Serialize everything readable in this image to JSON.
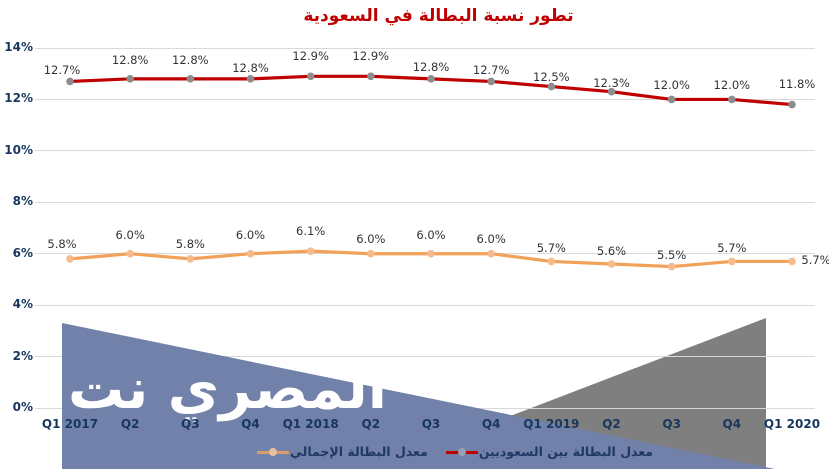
{
  "title": "تطور نسبة البطالة في السعودية",
  "watermark_text": "المصري نت",
  "chart_data": {
    "type": "line",
    "title": "تطور نسبة البطالة في السعودية",
    "categories": [
      "Q1 2017",
      "Q2",
      "Q3",
      "Q4",
      "Q1 2018",
      "Q2",
      "Q3",
      "Q4",
      "Q1 2019",
      "Q2",
      "Q3",
      "Q4",
      "Q1 2020"
    ],
    "series": [
      {
        "name": "معدل البطالة بين السعوديين",
        "values": [
          12.7,
          12.8,
          12.8,
          12.8,
          12.9,
          12.9,
          12.8,
          12.7,
          12.5,
          12.3,
          12.0,
          12.0,
          11.8
        ],
        "labels": [
          "12.7%",
          "12.8%",
          "12.8%",
          "12.8%",
          "12.9%",
          "12.9%",
          "12.8%",
          "12.7%",
          "12.5%",
          "12.3%",
          "12.0%",
          "12.0%",
          "11.8%"
        ],
        "line_color": "#C00000",
        "marker_color": "#8D8D8D"
      },
      {
        "name": "معدل البطالة الإجمالي",
        "values": [
          5.8,
          6.0,
          5.8,
          6.0,
          6.1,
          6.0,
          6.0,
          6.0,
          5.7,
          5.6,
          5.5,
          5.7,
          5.7
        ],
        "labels": [
          "5.8%",
          "6.0%",
          "5.8%",
          "6.0%",
          "6.1%",
          "6.0%",
          "6.0%",
          "6.0%",
          "5.7%",
          "5.6%",
          "5.5%",
          "5.7%",
          "5.7%"
        ],
        "line_color": "#F2A159",
        "marker_color": "#F6BB8C"
      }
    ],
    "ylim": [
      0,
      14
    ],
    "ytick_labels": [
      "0%",
      "2%",
      "4%",
      "6%",
      "8%",
      "10%",
      "12%",
      "14%"
    ],
    "ytick_values": [
      0,
      2,
      4,
      6,
      8,
      10,
      12,
      14
    ],
    "grid": true,
    "legend_position": "bottom"
  },
  "legend": {
    "items": [
      {
        "label": "معدل البطالة الإجمالي",
        "line_color": "#D99C6B",
        "dot_color": "#E8C0A0"
      },
      {
        "label": "معدل البطالة بين السعوديين",
        "line_color": "#C00000",
        "dot_color": "#96A0B4"
      }
    ]
  },
  "colors": {
    "title": "#C00000",
    "axis_text": "#17375E",
    "gridline": "#D9D9D9",
    "watermark_blue": "#7181A9",
    "watermark_gray": "#7F7F7F",
    "data_label": "#333333"
  }
}
